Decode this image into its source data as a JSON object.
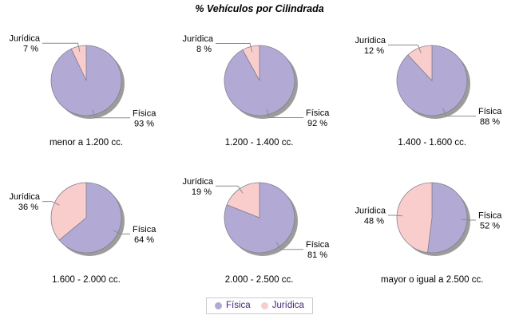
{
  "title": "% Vehículos por Cilindrada",
  "chart_data": {
    "type": "pie",
    "title": "% Vehículos por Cilindrada",
    "series_labels": [
      "Física",
      "Jurídica"
    ],
    "unit": "%",
    "layout": "2 rows x 3 columns of pies, shared legend bottom center",
    "charts": [
      {
        "label": "menor a 1.200 cc.",
        "slices": [
          {
            "name": "Física",
            "value": 93,
            "value_label": "93 %"
          },
          {
            "name": "Jurídica",
            "value": 7,
            "value_label": "7 %"
          }
        ]
      },
      {
        "label": "1.200 - 1.400 cc.",
        "slices": [
          {
            "name": "Física",
            "value": 92,
            "value_label": "92 %"
          },
          {
            "name": "Jurídica",
            "value": 8,
            "value_label": "8 %"
          }
        ]
      },
      {
        "label": "1.400 - 1.600 cc.",
        "slices": [
          {
            "name": "Física",
            "value": 88,
            "value_label": "88 %"
          },
          {
            "name": "Jurídica",
            "value": 12,
            "value_label": "12 %"
          }
        ]
      },
      {
        "label": "1.600 - 2.000 cc.",
        "slices": [
          {
            "name": "Física",
            "value": 64,
            "value_label": "64 %"
          },
          {
            "name": "Jurídica",
            "value": 36,
            "value_label": "36 %"
          }
        ]
      },
      {
        "label": "2.000 - 2.500 cc.",
        "slices": [
          {
            "name": "Física",
            "value": 81,
            "value_label": "81 %"
          },
          {
            "name": "Jurídica",
            "value": 19,
            "value_label": "19 %"
          }
        ]
      },
      {
        "label": "mayor o igual a 2.500 cc.",
        "slices": [
          {
            "name": "Física",
            "value": 52,
            "value_label": "52 %"
          },
          {
            "name": "Jurídica",
            "value": 48,
            "value_label": "48 %"
          }
        ]
      }
    ]
  },
  "colors": {
    "fisica": "#B3A9D5",
    "juridica": "#FACDCD",
    "shadow": "#9C9C9C",
    "slice_border": "#80808C",
    "leader_line": "#8C8C8C",
    "label_text": "#000000",
    "legend_text": "#44287A",
    "legend_border": "#C9C9D3",
    "background": "#FFFFFF"
  },
  "legend": {
    "items": [
      {
        "label": "Física"
      },
      {
        "label": "Jurídica"
      }
    ]
  }
}
